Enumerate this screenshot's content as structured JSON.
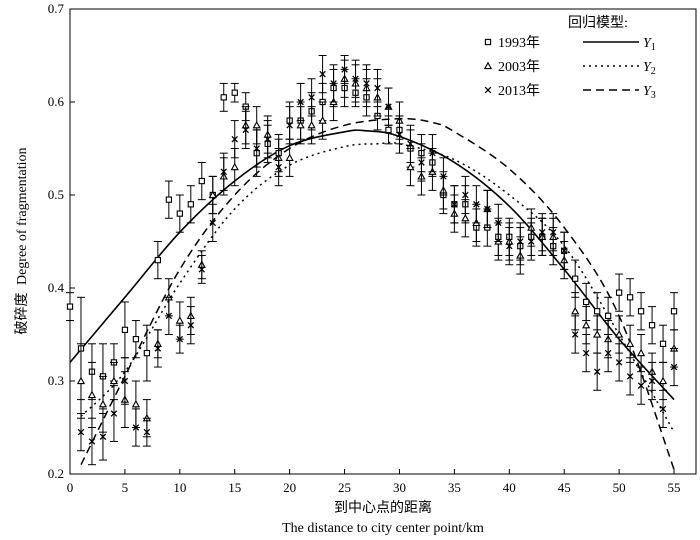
{
  "chart_data": {
    "type": "scatter",
    "xlabel_cn": "到中心点的距离",
    "xlabel": "The distance to city center point/km",
    "ylabel_cn": "破碎度",
    "ylabel": "Degree of fragmentation",
    "xlim": [
      0,
      57
    ],
    "ylim": [
      0.2,
      0.7
    ],
    "xticks": [
      "0",
      "5",
      "10",
      "15",
      "20",
      "25",
      "30",
      "35",
      "40",
      "45",
      "50",
      "55"
    ],
    "yticks": [
      "0.2",
      "0.3",
      "0.4",
      "0.5",
      "0.6",
      "0.7"
    ],
    "legend_points_title": "",
    "legend_models_title": "回归模型:",
    "series": [
      {
        "name": "1993年",
        "marker": "square",
        "x": [
          0,
          1,
          2,
          3,
          4,
          5,
          6,
          7,
          8,
          9,
          10,
          11,
          12,
          13,
          14,
          15,
          16,
          17,
          18,
          19,
          20,
          21,
          22,
          23,
          24,
          25,
          26,
          27,
          28,
          29,
          30,
          31,
          32,
          33,
          34,
          35,
          36,
          37,
          38,
          39,
          40,
          41,
          42,
          43,
          44,
          45,
          46,
          47,
          48,
          49,
          50,
          51,
          52,
          53,
          54,
          55
        ],
        "y": [
          0.38,
          0.335,
          0.31,
          0.305,
          0.32,
          0.355,
          0.345,
          0.33,
          0.43,
          0.495,
          0.48,
          0.49,
          0.515,
          0.5,
          0.605,
          0.61,
          0.595,
          0.545,
          0.555,
          0.545,
          0.58,
          0.58,
          0.59,
          0.6,
          0.615,
          0.615,
          0.61,
          0.605,
          0.585,
          0.57,
          0.57,
          0.55,
          0.545,
          0.535,
          0.5,
          0.49,
          0.49,
          0.465,
          0.465,
          0.455,
          0.455,
          0.445,
          0.455,
          0.455,
          0.445,
          0.44,
          0.41,
          0.385,
          0.375,
          0.37,
          0.395,
          0.39,
          0.375,
          0.36,
          0.34,
          0.375
        ],
        "err": [
          0.015,
          0.055,
          0.03,
          0.035,
          0.02,
          0.03,
          0.02,
          0.03,
          0.02,
          0.02,
          0.02,
          0.02,
          0.02,
          0.02,
          0.015,
          0.01,
          0.015,
          0.025,
          0.02,
          0.02,
          0.02,
          0.02,
          0.02,
          0.02,
          0.02,
          0.02,
          0.015,
          0.02,
          0.015,
          0.015,
          0.015,
          0.02,
          0.02,
          0.015,
          0.02,
          0.02,
          0.02,
          0.02,
          0.02,
          0.02,
          0.02,
          0.02,
          0.02,
          0.02,
          0.02,
          0.02,
          0.02,
          0.02,
          0.02,
          0.02,
          0.02,
          0.02,
          0.02,
          0.02,
          0.02,
          0.02
        ]
      },
      {
        "name": "2003年",
        "marker": "triangle",
        "x": [
          1,
          2,
          3,
          4,
          5,
          6,
          7,
          8,
          9,
          10,
          11,
          12,
          13,
          14,
          15,
          16,
          17,
          18,
          19,
          20,
          21,
          22,
          23,
          24,
          25,
          26,
          27,
          28,
          29,
          30,
          31,
          32,
          33,
          34,
          35,
          36,
          37,
          38,
          39,
          40,
          41,
          42,
          43,
          44,
          45,
          46,
          47,
          48,
          49,
          50,
          51,
          52,
          53,
          54,
          55
        ],
        "y": [
          0.3,
          0.285,
          0.275,
          0.3,
          0.28,
          0.275,
          0.26,
          0.34,
          0.39,
          0.365,
          0.37,
          0.425,
          0.5,
          0.52,
          0.53,
          0.575,
          0.575,
          0.565,
          0.54,
          0.54,
          0.575,
          0.575,
          0.58,
          0.6,
          0.625,
          0.62,
          0.615,
          0.605,
          0.595,
          0.58,
          0.53,
          0.52,
          0.525,
          0.505,
          0.48,
          0.475,
          0.47,
          0.485,
          0.45,
          0.45,
          0.435,
          0.465,
          0.455,
          0.455,
          0.43,
          0.375,
          0.36,
          0.35,
          0.345,
          0.35,
          0.34,
          0.33,
          0.31,
          0.3,
          0.335
        ],
        "err": [
          0.04,
          0.035,
          0.03,
          0.02,
          0.03,
          0.025,
          0.02,
          0.015,
          0.02,
          0.02,
          0.02,
          0.015,
          0.02,
          0.02,
          0.02,
          0.02,
          0.02,
          0.02,
          0.02,
          0.02,
          0.02,
          0.02,
          0.02,
          0.02,
          0.02,
          0.02,
          0.02,
          0.02,
          0.02,
          0.02,
          0.02,
          0.02,
          0.02,
          0.02,
          0.02,
          0.02,
          0.02,
          0.02,
          0.02,
          0.02,
          0.02,
          0.02,
          0.02,
          0.02,
          0.02,
          0.02,
          0.02,
          0.02,
          0.02,
          0.02,
          0.02,
          0.02,
          0.02,
          0.02,
          0.02
        ]
      },
      {
        "name": "2013年",
        "marker": "x",
        "x": [
          1,
          2,
          3,
          4,
          5,
          6,
          7,
          8,
          9,
          10,
          11,
          12,
          13,
          14,
          15,
          16,
          17,
          18,
          19,
          20,
          21,
          22,
          23,
          24,
          25,
          26,
          27,
          28,
          29,
          30,
          31,
          32,
          33,
          34,
          35,
          36,
          37,
          38,
          39,
          40,
          41,
          42,
          43,
          44,
          45,
          46,
          47,
          48,
          49,
          50,
          51,
          52,
          53,
          54,
          55
        ],
        "y": [
          0.245,
          0.235,
          0.24,
          0.265,
          0.3,
          0.25,
          0.245,
          0.335,
          0.37,
          0.345,
          0.36,
          0.42,
          0.47,
          0.525,
          0.56,
          0.57,
          0.55,
          0.56,
          0.53,
          0.575,
          0.6,
          0.605,
          0.63,
          0.62,
          0.635,
          0.625,
          0.62,
          0.615,
          0.595,
          0.565,
          0.555,
          0.535,
          0.545,
          0.52,
          0.49,
          0.5,
          0.49,
          0.485,
          0.47,
          0.445,
          0.45,
          0.45,
          0.46,
          0.46,
          0.44,
          0.35,
          0.33,
          0.31,
          0.33,
          0.32,
          0.305,
          0.295,
          0.3,
          0.27,
          0.315
        ],
        "err": [
          0.02,
          0.025,
          0.025,
          0.03,
          0.025,
          0.02,
          0.015,
          0.02,
          0.02,
          0.015,
          0.02,
          0.015,
          0.02,
          0.02,
          0.02,
          0.02,
          0.02,
          0.02,
          0.02,
          0.02,
          0.02,
          0.02,
          0.02,
          0.02,
          0.015,
          0.02,
          0.02,
          0.02,
          0.02,
          0.02,
          0.02,
          0.02,
          0.02,
          0.02,
          0.02,
          0.02,
          0.02,
          0.02,
          0.02,
          0.02,
          0.02,
          0.02,
          0.02,
          0.02,
          0.02,
          0.02,
          0.02,
          0.02,
          0.02,
          0.02,
          0.02,
          0.02,
          0.02,
          0.02,
          0.02
        ]
      }
    ],
    "curves": [
      {
        "name": "Y1",
        "style": "solid",
        "x": [
          0,
          5,
          10,
          15,
          20,
          25,
          27,
          30,
          35,
          40,
          45,
          50,
          55
        ],
        "y": [
          0.32,
          0.39,
          0.46,
          0.515,
          0.553,
          0.568,
          0.569,
          0.563,
          0.535,
          0.488,
          0.42,
          0.345,
          0.28
        ]
      },
      {
        "name": "Y2",
        "style": "dotted",
        "x": [
          1,
          5,
          10,
          15,
          20,
          25,
          28,
          30,
          35,
          40,
          45,
          50,
          55
        ],
        "y": [
          0.262,
          0.31,
          0.405,
          0.485,
          0.532,
          0.552,
          0.555,
          0.555,
          0.538,
          0.5,
          0.445,
          0.35,
          0.245
        ]
      },
      {
        "name": "Y3",
        "style": "dashed",
        "x": [
          1,
          5,
          10,
          15,
          20,
          25,
          30,
          33,
          35,
          40,
          45,
          50,
          55
        ],
        "y": [
          0.21,
          0.305,
          0.42,
          0.5,
          0.55,
          0.575,
          0.582,
          0.578,
          0.568,
          0.528,
          0.465,
          0.37,
          0.205
        ]
      }
    ]
  }
}
